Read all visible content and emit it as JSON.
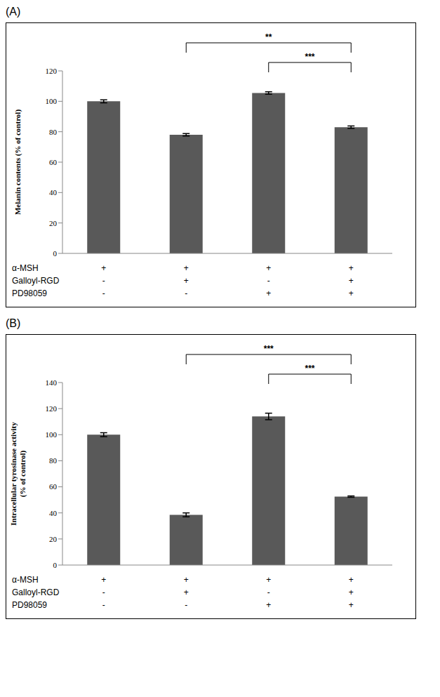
{
  "chart_data": [
    {
      "panel_label": "(A)",
      "type": "bar",
      "y_label": "Melanin contents (% of control)",
      "categories": [
        null,
        null,
        null,
        null
      ],
      "values": [
        100,
        78,
        105.5,
        83
      ],
      "errors": [
        1,
        0.8,
        0.8,
        0.8
      ],
      "color": "#595959",
      "ylim": [
        0,
        120
      ],
      "yticks": [
        0,
        20,
        40,
        60,
        80,
        100,
        120
      ],
      "conditions": [
        {
          "name": "α-MSH",
          "values": [
            "+",
            "+",
            "+",
            "+"
          ]
        },
        {
          "name": "Galloyl-RGD",
          "values": [
            "-",
            "+",
            "-",
            "+"
          ]
        },
        {
          "name": "PD98059",
          "values": [
            "-",
            "-",
            "+",
            "+"
          ]
        }
      ],
      "annotations": [
        {
          "from": 1,
          "to": 3,
          "label": "**"
        },
        {
          "from": 2,
          "to": 3,
          "label": "***"
        }
      ]
    },
    {
      "panel_label": "(B)",
      "type": "bar",
      "y_label": "Intracellular tyrosinase activity (% of control)",
      "categories": [
        null,
        null,
        null,
        null
      ],
      "values": [
        100,
        38.5,
        114,
        52.5
      ],
      "errors": [
        1.5,
        1.5,
        2.5,
        0.5
      ],
      "color": "#595959",
      "ylim": [
        0,
        140
      ],
      "yticks": [
        0,
        20,
        40,
        60,
        80,
        100,
        120,
        140
      ],
      "conditions": [
        {
          "name": "α-MSH",
          "values": [
            "+",
            "+",
            "+",
            "+"
          ]
        },
        {
          "name": "Galloyl-RGD",
          "values": [
            "-",
            "+",
            "-",
            "+"
          ]
        },
        {
          "name": "PD98059",
          "values": [
            "-",
            "-",
            "+",
            "+"
          ]
        }
      ],
      "annotations": [
        {
          "from": 1,
          "to": 3,
          "label": "***"
        },
        {
          "from": 2,
          "to": 3,
          "label": "***"
        }
      ]
    }
  ]
}
